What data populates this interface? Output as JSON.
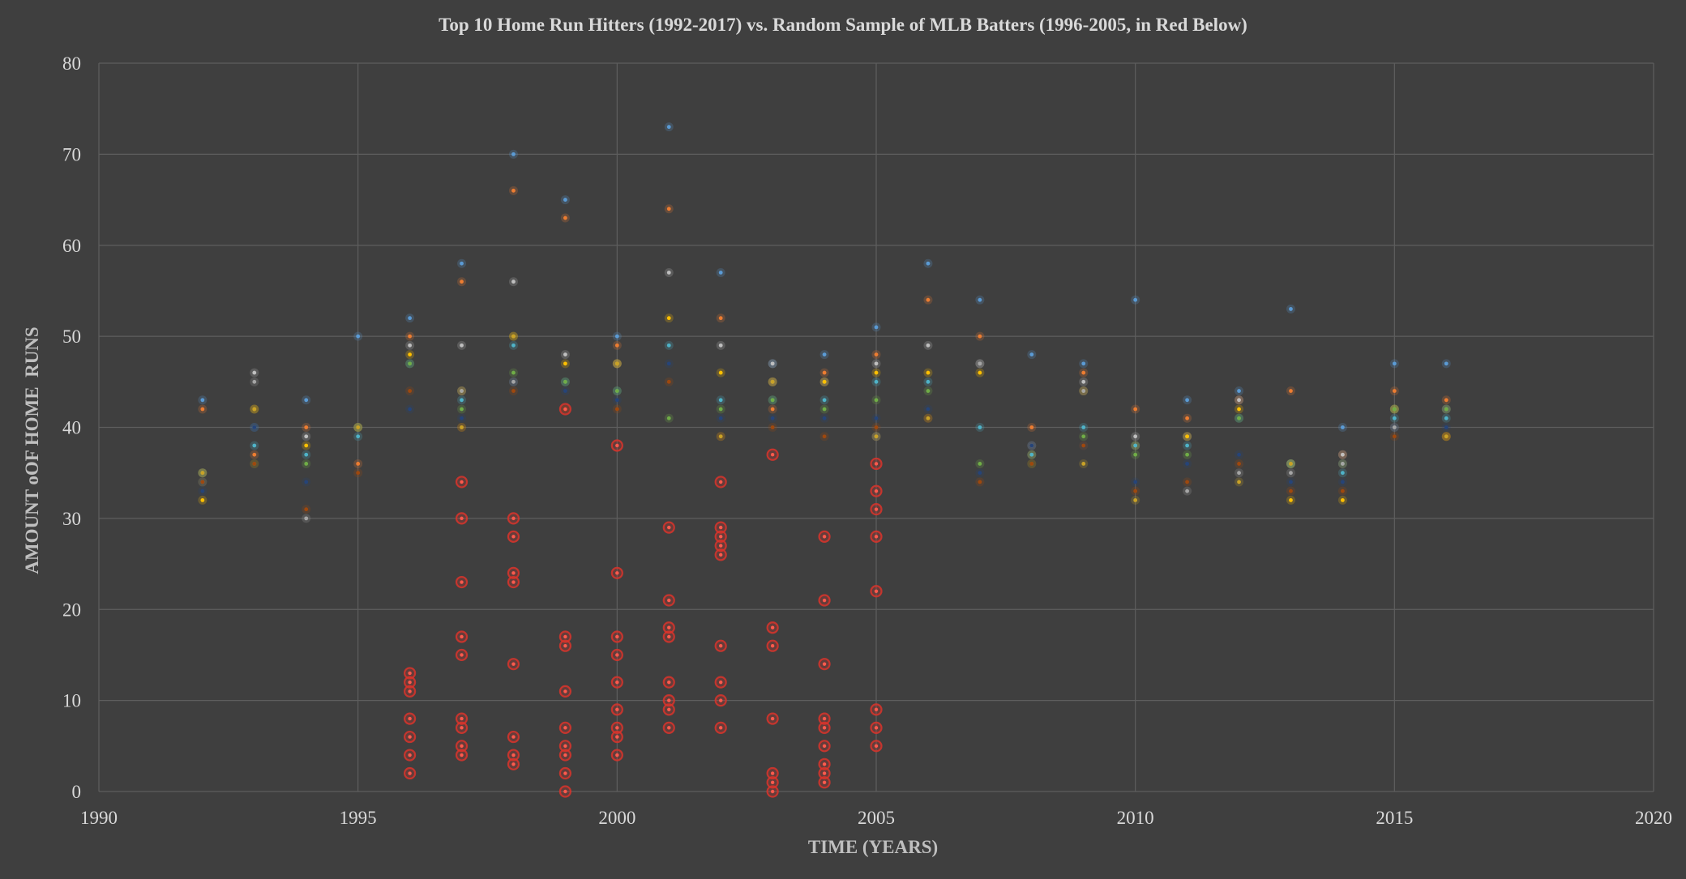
{
  "chart_data": {
    "type": "scatter",
    "title": "Top 10 Home Run Hitters (1992-2017) vs. Random Sample of MLB Batters (1996-2005, in Red Below)",
    "xlabel": "TIME (YEARS)",
    "ylabel": "AMOUNT oOF HOME  RUNS",
    "xlim": [
      1990,
      2020
    ],
    "ylim": [
      0,
      80
    ],
    "x_ticks": [
      1990,
      1995,
      2000,
      2005,
      2010,
      2015,
      2020
    ],
    "y_ticks": [
      0,
      10,
      20,
      30,
      40,
      50,
      60,
      70,
      80
    ],
    "grid": true,
    "legend": "none",
    "colors": {
      "background": "#3f3f3f",
      "gridline": "#5e5e5e",
      "text": "#d9d9d9",
      "top1": "#5b9bd5",
      "top2": "#ed7d31",
      "top3": "#bfbfbf",
      "top4": "#ffc000",
      "top5": "#4fb3c8",
      "top6": "#70ad47",
      "top7": "#264478",
      "top8": "#9e480e",
      "top9": "#a5a5a5",
      "top10": "#c9a227",
      "sample": "#d9342b"
    },
    "series": [
      {
        "color_key": "top1",
        "points": [
          [
            1992,
            43
          ],
          [
            1993,
            40
          ],
          [
            1994,
            43
          ],
          [
            1995,
            50
          ],
          [
            1996,
            52
          ],
          [
            1997,
            58
          ],
          [
            1998,
            70
          ],
          [
            1999,
            65
          ],
          [
            2000,
            50
          ],
          [
            2001,
            73
          ],
          [
            2002,
            57
          ],
          [
            2003,
            47
          ],
          [
            2004,
            48
          ],
          [
            2005,
            51
          ],
          [
            2006,
            58
          ],
          [
            2007,
            54
          ],
          [
            2008,
            48
          ],
          [
            2009,
            47
          ],
          [
            2010,
            54
          ],
          [
            2011,
            43
          ],
          [
            2012,
            44
          ],
          [
            2013,
            53
          ],
          [
            2014,
            40
          ],
          [
            2015,
            47
          ],
          [
            2016,
            47
          ]
        ]
      },
      {
        "color_key": "top2",
        "points": [
          [
            1992,
            42
          ],
          [
            1993,
            37
          ],
          [
            1994,
            40
          ],
          [
            1995,
            36
          ],
          [
            1996,
            50
          ],
          [
            1997,
            56
          ],
          [
            1998,
            66
          ],
          [
            1999,
            63
          ],
          [
            2000,
            49
          ],
          [
            2001,
            64
          ],
          [
            2002,
            52
          ],
          [
            2003,
            42
          ],
          [
            2004,
            46
          ],
          [
            2005,
            48
          ],
          [
            2006,
            54
          ],
          [
            2007,
            50
          ],
          [
            2008,
            40
          ],
          [
            2009,
            46
          ],
          [
            2010,
            42
          ],
          [
            2011,
            41
          ],
          [
            2012,
            43
          ],
          [
            2013,
            44
          ],
          [
            2014,
            37
          ],
          [
            2015,
            44
          ],
          [
            2016,
            43
          ]
        ]
      },
      {
        "color_key": "top3",
        "points": [
          [
            1992,
            35
          ],
          [
            1993,
            46
          ],
          [
            1994,
            39
          ],
          [
            1995,
            40
          ],
          [
            1996,
            49
          ],
          [
            1997,
            49
          ],
          [
            1998,
            56
          ],
          [
            1999,
            48
          ],
          [
            2000,
            47
          ],
          [
            2001,
            57
          ],
          [
            2002,
            49
          ],
          [
            2003,
            47
          ],
          [
            2004,
            45
          ],
          [
            2005,
            47
          ],
          [
            2006,
            49
          ],
          [
            2007,
            47
          ],
          [
            2008,
            38
          ],
          [
            2009,
            45
          ],
          [
            2010,
            39
          ],
          [
            2011,
            39
          ],
          [
            2012,
            43
          ],
          [
            2013,
            36
          ],
          [
            2014,
            37
          ],
          [
            2015,
            42
          ],
          [
            2016,
            42
          ]
        ]
      },
      {
        "color_key": "top4",
        "points": [
          [
            1992,
            32
          ],
          [
            1993,
            42
          ],
          [
            1994,
            38
          ],
          [
            1995,
            40
          ],
          [
            1996,
            48
          ],
          [
            1997,
            44
          ],
          [
            1998,
            50
          ],
          [
            1999,
            47
          ],
          [
            2000,
            47
          ],
          [
            2001,
            52
          ],
          [
            2002,
            46
          ],
          [
            2003,
            45
          ],
          [
            2004,
            45
          ],
          [
            2005,
            46
          ],
          [
            2006,
            46
          ],
          [
            2007,
            46
          ],
          [
            2008,
            37
          ],
          [
            2009,
            44
          ],
          [
            2010,
            38
          ],
          [
            2011,
            39
          ],
          [
            2012,
            42
          ],
          [
            2013,
            32
          ],
          [
            2014,
            32
          ],
          [
            2015,
            42
          ],
          [
            2016,
            39
          ]
        ]
      },
      {
        "color_key": "top5",
        "points": [
          [
            1992,
            34
          ],
          [
            1993,
            38
          ],
          [
            1994,
            37
          ],
          [
            1995,
            39
          ],
          [
            1996,
            47
          ],
          [
            1997,
            43
          ],
          [
            1998,
            49
          ],
          [
            1999,
            45
          ],
          [
            2000,
            44
          ],
          [
            2001,
            49
          ],
          [
            2002,
            43
          ],
          [
            2003,
            43
          ],
          [
            2004,
            43
          ],
          [
            2005,
            45
          ],
          [
            2006,
            45
          ],
          [
            2007,
            40
          ],
          [
            2008,
            37
          ],
          [
            2009,
            40
          ],
          [
            2010,
            38
          ],
          [
            2011,
            38
          ],
          [
            2012,
            41
          ],
          [
            2013,
            36
          ],
          [
            2014,
            35
          ],
          [
            2015,
            41
          ],
          [
            2016,
            41
          ]
        ]
      },
      {
        "color_key": "top6",
        "points": [
          [
            1992,
            35
          ],
          [
            1993,
            36
          ],
          [
            1994,
            36
          ],
          [
            1995,
            40
          ],
          [
            1996,
            47
          ],
          [
            1997,
            42
          ],
          [
            1998,
            46
          ],
          [
            1999,
            45
          ],
          [
            2000,
            44
          ],
          [
            2001,
            41
          ],
          [
            2002,
            42
          ],
          [
            2003,
            43
          ],
          [
            2004,
            42
          ],
          [
            2005,
            43
          ],
          [
            2006,
            44
          ],
          [
            2007,
            36
          ],
          [
            2008,
            36
          ],
          [
            2009,
            39
          ],
          [
            2010,
            37
          ],
          [
            2011,
            37
          ],
          [
            2012,
            41
          ],
          [
            2013,
            36
          ],
          [
            2014,
            36
          ],
          [
            2015,
            42
          ],
          [
            2016,
            42
          ]
        ]
      },
      {
        "color_key": "top7",
        "points": [
          [
            1992,
            33
          ],
          [
            1993,
            40
          ],
          [
            1994,
            34
          ],
          [
            1995,
            40
          ],
          [
            1996,
            42
          ],
          [
            1997,
            41
          ],
          [
            1998,
            45
          ],
          [
            1999,
            44
          ],
          [
            2000,
            43
          ],
          [
            2001,
            47
          ],
          [
            2002,
            41
          ],
          [
            2003,
            41
          ],
          [
            2004,
            41
          ],
          [
            2005,
            41
          ],
          [
            2006,
            42
          ],
          [
            2007,
            35
          ],
          [
            2008,
            38
          ],
          [
            2009,
            38
          ],
          [
            2010,
            34
          ],
          [
            2011,
            36
          ],
          [
            2012,
            37
          ],
          [
            2013,
            34
          ],
          [
            2014,
            34
          ],
          [
            2015,
            40
          ],
          [
            2016,
            40
          ]
        ]
      },
      {
        "color_key": "top8",
        "points": [
          [
            1992,
            34
          ],
          [
            1993,
            36
          ],
          [
            1994,
            31
          ],
          [
            1995,
            35
          ],
          [
            1996,
            44
          ],
          [
            1997,
            40
          ],
          [
            1998,
            44
          ],
          [
            1999,
            42
          ],
          [
            2000,
            42
          ],
          [
            2001,
            45
          ],
          [
            2002,
            39
          ],
          [
            2003,
            40
          ],
          [
            2004,
            39
          ],
          [
            2005,
            40
          ],
          [
            2006,
            41
          ],
          [
            2007,
            34
          ],
          [
            2008,
            36
          ],
          [
            2009,
            38
          ],
          [
            2010,
            33
          ],
          [
            2011,
            34
          ],
          [
            2012,
            36
          ],
          [
            2013,
            33
          ],
          [
            2014,
            33
          ],
          [
            2015,
            39
          ],
          [
            2016,
            39
          ]
        ]
      },
      {
        "color_key": "top9",
        "points": [
          [
            1993,
            45
          ],
          [
            1994,
            30
          ],
          [
            1997,
            44
          ],
          [
            1998,
            45
          ],
          [
            2003,
            45
          ],
          [
            2005,
            39
          ],
          [
            2007,
            47
          ],
          [
            2009,
            44
          ],
          [
            2011,
            33
          ],
          [
            2012,
            35
          ],
          [
            2013,
            35
          ],
          [
            2014,
            36
          ],
          [
            2015,
            40
          ]
        ]
      },
      {
        "color_key": "top10",
        "points": [
          [
            1992,
            35
          ],
          [
            1993,
            42
          ],
          [
            1995,
            40
          ],
          [
            1997,
            40
          ],
          [
            1998,
            50
          ],
          [
            2000,
            47
          ],
          [
            2002,
            39
          ],
          [
            2003,
            45
          ],
          [
            2005,
            39
          ],
          [
            2006,
            41
          ],
          [
            2009,
            36
          ],
          [
            2010,
            32
          ],
          [
            2012,
            34
          ],
          [
            2013,
            36
          ],
          [
            2016,
            39
          ]
        ]
      },
      {
        "color_key": "sample",
        "sample": true,
        "points": [
          [
            1996,
            13
          ],
          [
            1996,
            12
          ],
          [
            1996,
            11
          ],
          [
            1996,
            8
          ],
          [
            1996,
            6
          ],
          [
            1996,
            4
          ],
          [
            1996,
            2
          ],
          [
            1997,
            34
          ],
          [
            1997,
            30
          ],
          [
            1997,
            23
          ],
          [
            1997,
            17
          ],
          [
            1997,
            15
          ],
          [
            1997,
            8
          ],
          [
            1997,
            7
          ],
          [
            1997,
            5
          ],
          [
            1997,
            4
          ],
          [
            1998,
            30
          ],
          [
            1998,
            28
          ],
          [
            1998,
            24
          ],
          [
            1998,
            23
          ],
          [
            1998,
            14
          ],
          [
            1998,
            6
          ],
          [
            1998,
            4
          ],
          [
            1998,
            3
          ],
          [
            1999,
            42
          ],
          [
            1999,
            17
          ],
          [
            1999,
            16
          ],
          [
            1999,
            11
          ],
          [
            1999,
            7
          ],
          [
            1999,
            5
          ],
          [
            1999,
            4
          ],
          [
            1999,
            2
          ],
          [
            1999,
            0
          ],
          [
            2000,
            38
          ],
          [
            2000,
            24
          ],
          [
            2000,
            17
          ],
          [
            2000,
            15
          ],
          [
            2000,
            12
          ],
          [
            2000,
            9
          ],
          [
            2000,
            7
          ],
          [
            2000,
            6
          ],
          [
            2000,
            4
          ],
          [
            2001,
            29
          ],
          [
            2001,
            21
          ],
          [
            2001,
            18
          ],
          [
            2001,
            17
          ],
          [
            2001,
            12
          ],
          [
            2001,
            10
          ],
          [
            2001,
            9
          ],
          [
            2001,
            7
          ],
          [
            2002,
            34
          ],
          [
            2002,
            29
          ],
          [
            2002,
            28
          ],
          [
            2002,
            27
          ],
          [
            2002,
            26
          ],
          [
            2002,
            16
          ],
          [
            2002,
            12
          ],
          [
            2002,
            10
          ],
          [
            2002,
            7
          ],
          [
            2003,
            37
          ],
          [
            2003,
            18
          ],
          [
            2003,
            16
          ],
          [
            2003,
            8
          ],
          [
            2003,
            2
          ],
          [
            2003,
            1
          ],
          [
            2003,
            0
          ],
          [
            2004,
            28
          ],
          [
            2004,
            21
          ],
          [
            2004,
            14
          ],
          [
            2004,
            8
          ],
          [
            2004,
            7
          ],
          [
            2004,
            5
          ],
          [
            2004,
            3
          ],
          [
            2004,
            2
          ],
          [
            2004,
            1
          ],
          [
            2005,
            36
          ],
          [
            2005,
            33
          ],
          [
            2005,
            31
          ],
          [
            2005,
            28
          ],
          [
            2005,
            22
          ],
          [
            2005,
            9
          ],
          [
            2005,
            7
          ],
          [
            2005,
            5
          ]
        ]
      }
    ]
  }
}
